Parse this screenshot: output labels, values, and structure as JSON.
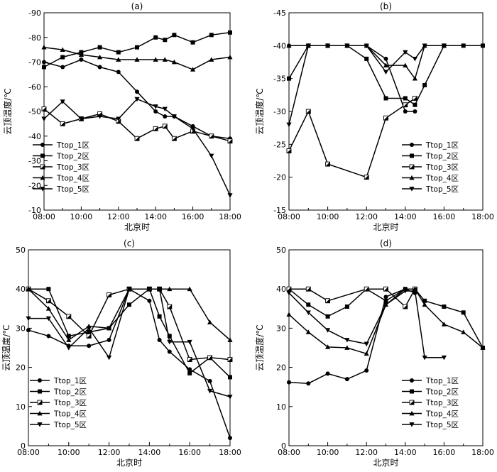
{
  "chart_data": [
    {
      "type": "line",
      "panel_label": "(a)",
      "xlabel": "北京时",
      "ylabel": "云顶温度/℃",
      "xlim": [
        8,
        18
      ],
      "ylim": [
        -10,
        -90
      ],
      "y_inverted": true,
      "xticks": [
        8,
        10,
        12,
        14,
        16,
        18
      ],
      "xtick_labels": [
        "08:00",
        "10:00",
        "12:00",
        "14:00",
        "16:00",
        "18:00"
      ],
      "yticks": [
        -10,
        -20,
        -30,
        -40,
        -50,
        -60,
        -70,
        -80,
        -90
      ],
      "ytick_labels": [
        "-10",
        "-20",
        "-30",
        "-40",
        "-50",
        "-60",
        "-70",
        "-80",
        "-90"
      ],
      "legend_position": "bottom-left",
      "series": [
        {
          "name": "Ttop_1区",
          "marker": "circle",
          "x": [
            8,
            9,
            10,
            11,
            12,
            13,
            14,
            14.5,
            15,
            16,
            17,
            18
          ],
          "y": [
            -70,
            -68,
            -71,
            -68,
            -66,
            -58,
            -50,
            -48,
            -48,
            -44,
            -40,
            -39
          ]
        },
        {
          "name": "Ttop_2区",
          "marker": "square",
          "x": [
            8,
            9,
            10,
            11,
            12,
            13,
            14,
            14.5,
            15,
            16,
            17,
            18
          ],
          "y": [
            -68,
            -72,
            -74,
            -76,
            -74,
            -76,
            -80,
            -79,
            -81,
            -78,
            -81,
            -82
          ]
        },
        {
          "name": "Ttop_3区",
          "marker": "half-square",
          "x": [
            8,
            9,
            10,
            11,
            12,
            13,
            14,
            14.5,
            15,
            16,
            17,
            18
          ],
          "y": [
            -51,
            -45,
            -47,
            -49,
            -46,
            -39,
            -43,
            -44,
            -39,
            -42,
            -40,
            -38
          ]
        },
        {
          "name": "Ttop_4区",
          "marker": "triangle-up",
          "x": [
            8,
            9,
            10,
            11,
            12,
            13,
            14,
            14.5,
            15,
            16,
            17,
            18
          ],
          "y": [
            -76,
            -75,
            -73,
            -72,
            -71,
            -71,
            -71,
            -71,
            -70,
            -67,
            -71,
            -72
          ]
        },
        {
          "name": "Ttop_5区",
          "marker": "triangle-down",
          "x": [
            8,
            9,
            10,
            11,
            12,
            13,
            14,
            14.5,
            15,
            16,
            17,
            18
          ],
          "y": [
            -47,
            -54,
            -47,
            -48,
            -47,
            -55,
            -52,
            -51,
            -48,
            -43,
            -32,
            -16
          ]
        }
      ]
    },
    {
      "type": "line",
      "panel_label": "(b)",
      "xlabel": "北京时",
      "ylabel": "云顶温度/℃",
      "xlim": [
        8,
        18
      ],
      "ylim": [
        -15,
        -45
      ],
      "y_inverted": true,
      "xticks": [
        8,
        10,
        12,
        14,
        16,
        18
      ],
      "xtick_labels": [
        "08:00",
        "10:00",
        "12:00",
        "14:00",
        "16:00",
        "18:00"
      ],
      "yticks": [
        -15,
        -20,
        -25,
        -30,
        -35,
        -40,
        -45
      ],
      "ytick_labels": [
        "-15",
        "-20",
        "-25",
        "-30",
        "-35",
        "-40",
        "-45"
      ],
      "legend_position": "bottom-right",
      "series": [
        {
          "name": "Ttop_1区",
          "marker": "circle",
          "x": [
            8,
            9,
            10,
            11,
            12,
            13,
            14,
            14.5
          ],
          "y": [
            -40,
            -40,
            -40,
            -40,
            -40,
            -38,
            -30,
            -30
          ]
        },
        {
          "name": "Ttop_2区",
          "marker": "square",
          "x": [
            8,
            9,
            10,
            11,
            12,
            13,
            14,
            14.5,
            15,
            16,
            17,
            18
          ],
          "y": [
            -35,
            -40,
            -40,
            -40,
            -38,
            -32,
            -32,
            -31,
            -34,
            -40,
            -40,
            -40
          ]
        },
        {
          "name": "Ttop_3区",
          "marker": "half-square",
          "x": [
            8,
            9,
            10,
            12,
            13,
            14,
            14.5
          ],
          "y": [
            -24,
            -30,
            -22,
            -20,
            -29,
            -31,
            -32
          ]
        },
        {
          "name": "Ttop_4区",
          "marker": "triangle-up",
          "x": [
            8,
            9,
            10,
            11,
            12,
            13,
            14,
            14.5,
            15,
            16
          ],
          "y": [
            -40,
            -40,
            -40,
            -40,
            -40,
            -37,
            -37,
            -35,
            -40,
            -40
          ]
        },
        {
          "name": "Ttop_5区",
          "marker": "triangle-down",
          "x": [
            8,
            9,
            10,
            11,
            12,
            13,
            14,
            14.5,
            15,
            16
          ],
          "y": [
            -28,
            -40,
            -40,
            -40,
            -40,
            -36,
            -39,
            -38,
            -40,
            -40
          ]
        }
      ]
    },
    {
      "type": "line",
      "panel_label": "(c)",
      "xlabel": "北京时",
      "ylabel": "云顶温度/℃",
      "xlim": [
        8,
        18
      ],
      "ylim": [
        0,
        50
      ],
      "y_inverted": false,
      "xticks": [
        8,
        10,
        12,
        14,
        16,
        18
      ],
      "xtick_labels": [
        "08:00",
        "10:00",
        "12:00",
        "14:00",
        "16:00",
        "18:00"
      ],
      "yticks": [
        0,
        10,
        20,
        30,
        40,
        50
      ],
      "ytick_labels": [
        "0",
        "10",
        "20",
        "30",
        "40",
        "50"
      ],
      "legend_position": "bottom-left",
      "series": [
        {
          "name": "Ttop_1区",
          "marker": "circle",
          "x": [
            8,
            9,
            10,
            11,
            12,
            13,
            14,
            14.5,
            15,
            16,
            17,
            18
          ],
          "y": [
            29.5,
            28,
            25.5,
            25.5,
            27,
            40,
            37,
            27,
            24,
            19.5,
            16.5,
            2
          ]
        },
        {
          "name": "Ttop_2区",
          "marker": "square",
          "x": [
            8,
            9,
            10,
            11,
            12,
            13,
            14,
            14.5,
            15,
            16,
            17,
            18
          ],
          "y": [
            40,
            40,
            28,
            29,
            30,
            36,
            40,
            33,
            28,
            18.5,
            22.5,
            17.5
          ]
        },
        {
          "name": "Ttop_3区",
          "marker": "half-square",
          "x": [
            8,
            9,
            10,
            11,
            12,
            13,
            14,
            14.5,
            15,
            16,
            17,
            18
          ],
          "y": [
            40,
            37,
            33,
            28,
            38.5,
            40,
            40,
            40,
            35.5,
            22,
            22.5,
            22
          ]
        },
        {
          "name": "Ttop_4区",
          "marker": "triangle-up",
          "x": [
            8,
            9,
            10,
            11,
            12,
            13,
            14,
            14.5,
            15,
            16,
            17,
            18
          ],
          "y": [
            40,
            35,
            27,
            30.5,
            30,
            40,
            40,
            40,
            40,
            40,
            31.5,
            27
          ]
        },
        {
          "name": "Ttop_5区",
          "marker": "triangle-down",
          "x": [
            8,
            9,
            10,
            11,
            12,
            13,
            14,
            14.5,
            15,
            16,
            17,
            18
          ],
          "y": [
            32.5,
            32.5,
            25,
            30,
            22.5,
            40,
            40,
            40,
            26.5,
            26.5,
            14,
            12.5
          ]
        }
      ]
    },
    {
      "type": "line",
      "panel_label": "(d)",
      "xlabel": "北京时",
      "ylabel": "云顶温度/℃",
      "xlim": [
        8,
        18
      ],
      "ylim": [
        0,
        50
      ],
      "y_inverted": false,
      "xticks": [
        8,
        10,
        12,
        14,
        16,
        18
      ],
      "xtick_labels": [
        "08:00",
        "10:00",
        "12:00",
        "14:00",
        "16:00",
        "18:00"
      ],
      "yticks": [
        0,
        10,
        20,
        30,
        40,
        50
      ],
      "ytick_labels": [
        "0",
        "10",
        "20",
        "30",
        "40",
        "50"
      ],
      "legend_position": "bottom-right",
      "series": [
        {
          "name": "Ttop_1区",
          "marker": "circle",
          "x": [
            8,
            9,
            10,
            11,
            12,
            13,
            14,
            14.5
          ],
          "y": [
            16.2,
            15.9,
            18.4,
            17,
            19.2,
            38,
            40,
            39
          ]
        },
        {
          "name": "Ttop_2区",
          "marker": "square",
          "x": [
            8,
            9,
            10,
            11,
            12,
            13,
            14,
            14.5,
            15,
            16,
            17,
            18
          ],
          "y": [
            40,
            36,
            33,
            35.5,
            40,
            37,
            40,
            40,
            37,
            35.5,
            34,
            25
          ]
        },
        {
          "name": "Ttop_3区",
          "marker": "half-square",
          "x": [
            8,
            9,
            10,
            12,
            13,
            14,
            14.5
          ],
          "y": [
            40,
            40,
            37,
            40,
            40,
            35.5,
            40
          ]
        },
        {
          "name": "Ttop_4区",
          "marker": "triangle-up",
          "x": [
            8,
            9,
            10,
            11,
            12,
            13,
            14,
            14.5,
            15,
            16,
            17,
            18
          ],
          "y": [
            33.5,
            29,
            25.2,
            25,
            23.5,
            36,
            40,
            40,
            36,
            31,
            29,
            25
          ]
        },
        {
          "name": "Ttop_5区",
          "marker": "triangle-down",
          "x": [
            8,
            9,
            10,
            11,
            12,
            13,
            14,
            14.5,
            15,
            16
          ],
          "y": [
            39,
            34,
            29.5,
            27,
            26,
            36,
            39.5,
            39.5,
            22.5,
            22.5
          ]
        }
      ]
    }
  ]
}
